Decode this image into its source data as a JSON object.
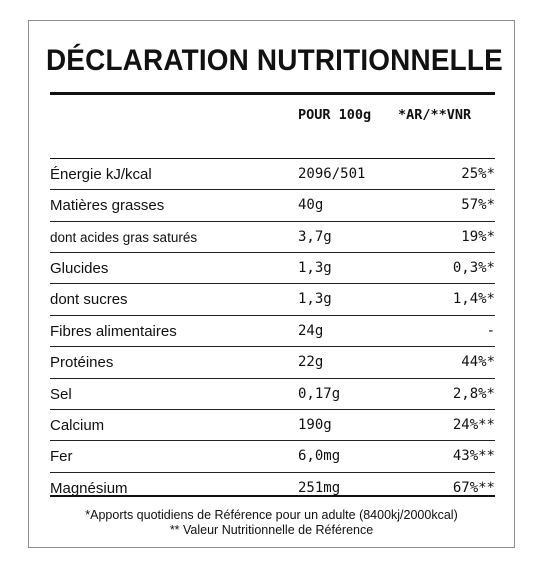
{
  "title": "DÉCLARATION NUTRITIONNELLE",
  "columns": {
    "per100": "POUR 100g",
    "ar": "*AR/**VNR"
  },
  "rows": [
    {
      "name": "Énergie kJ/kcal",
      "value": "2096/501",
      "pct": "25%*"
    },
    {
      "name": "Matières grasses",
      "value": "40g",
      "pct": "57%*"
    },
    {
      "name": "dont acides gras saturés",
      "value": "3,7g",
      "pct": "19%*"
    },
    {
      "name": "Glucides",
      "value": "1,3g",
      "pct": "0,3%*"
    },
    {
      "name": "dont sucres",
      "value": "1,3g",
      "pct": "1,4%*"
    },
    {
      "name": "Fibres alimentaires",
      "value": "24g",
      "pct": "-"
    },
    {
      "name": "Protéines",
      "value": "22g",
      "pct": "44%*"
    },
    {
      "name": "Sel",
      "value": "0,17g",
      "pct": "2,8%*"
    },
    {
      "name": "Calcium",
      "value": "190g",
      "pct": "24%**"
    },
    {
      "name": "Fer",
      "value": "6,0mg",
      "pct": "43%**"
    },
    {
      "name": "Magnésium",
      "value": "251mg",
      "pct": "67%**"
    }
  ],
  "footnotes": {
    "line1": "*Apports quotidiens de Référence pour un adulte (8400kj/2000kcal)",
    "line2": "** Valeur Nutritionnelle de Référence"
  }
}
